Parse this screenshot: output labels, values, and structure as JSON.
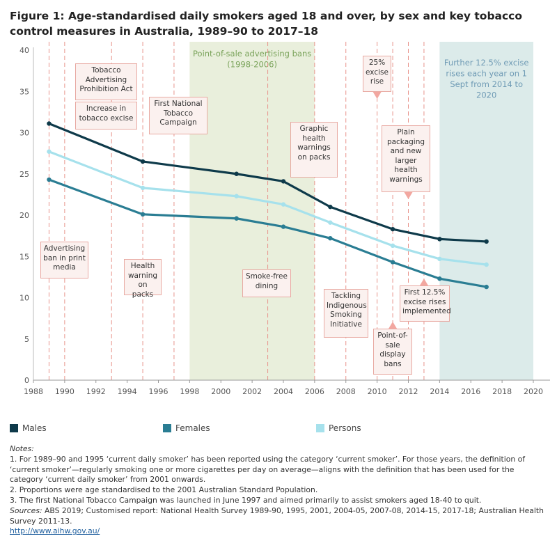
{
  "title": "Figure 1: Age-standardised daily smokers aged 18 and over, by sex and key tobacco control measures in Australia, 1989–90 to 2017–18",
  "colors": {
    "males": "#0e3a4a",
    "females": "#2a7d93",
    "persons": "#a6e1ec",
    "event_line": "#e8938b",
    "band_green": "#e9efdc",
    "band_blue": "#dcebea",
    "green_text": "#7aa35a",
    "blue_text": "#6f9bb5"
  },
  "chart_data": {
    "type": "line",
    "title": "Age-standardised daily smokers aged 18 and over, by sex and key tobacco control measures in Australia, 1989–90 to 2017–18",
    "xlabel": "",
    "ylabel": "",
    "xlim": [
      1988,
      2020
    ],
    "ylim": [
      0,
      40
    ],
    "x_ticks": [
      1988,
      1990,
      1992,
      1994,
      1996,
      1998,
      2000,
      2002,
      2004,
      2006,
      2008,
      2010,
      2012,
      2014,
      2016,
      2018,
      2020
    ],
    "y_ticks": [
      0,
      5,
      10,
      15,
      20,
      25,
      30,
      35,
      40
    ],
    "series": [
      {
        "name": "Males",
        "key": "males",
        "x": [
          1989,
          1995,
          2001,
          2004,
          2007,
          2011,
          2014,
          2017
        ],
        "values": [
          31.1,
          26.5,
          25.0,
          24.1,
          21.0,
          18.3,
          17.1,
          16.8
        ]
      },
      {
        "name": "Females",
        "key": "females",
        "x": [
          1989,
          1995,
          2001,
          2004,
          2007,
          2011,
          2014,
          2017
        ],
        "values": [
          24.3,
          20.1,
          19.6,
          18.6,
          17.2,
          14.3,
          12.3,
          11.3
        ]
      },
      {
        "name": "Persons",
        "key": "persons",
        "x": [
          1989,
          1995,
          2001,
          2004,
          2007,
          2011,
          2014,
          2017
        ],
        "values": [
          27.7,
          23.3,
          22.3,
          21.3,
          19.1,
          16.3,
          14.7,
          14.0
        ]
      }
    ],
    "event_years": [
      1989,
      1990,
      1993,
      1995,
      1997,
      2003,
      2006,
      2008,
      2010,
      2011,
      2012,
      2013
    ],
    "bands": [
      {
        "from": 1998,
        "to": 2006,
        "label_lines": [
          "Point-of-sale advertising bans",
          "(1998-2006)"
        ]
      },
      {
        "from": 2014,
        "to": 2020,
        "label_lines": [
          "Further 12.5% excise",
          "rises each year on 1",
          "Sept from 2014 to",
          "2020"
        ]
      }
    ],
    "annotations": [
      {
        "key": "print_media",
        "lines": [
          "Advertising",
          "ban in print",
          "media"
        ]
      },
      {
        "key": "tobacco_ad_act",
        "lines": [
          "Tobacco",
          "Advertising",
          "Prohibition Act"
        ]
      },
      {
        "key": "excise_increase",
        "lines": [
          "Increase in",
          "tobacco excise"
        ]
      },
      {
        "key": "health_warning",
        "lines": [
          "Health",
          "warning",
          "on packs"
        ]
      },
      {
        "key": "national_campaign",
        "lines": [
          "First National",
          "Tobacco",
          "Campaign"
        ]
      },
      {
        "key": "smoke_free",
        "lines": [
          "Smoke-free",
          "dining"
        ]
      },
      {
        "key": "graphic_warnings",
        "lines": [
          "Graphic",
          "health",
          "warnings",
          "on packs"
        ]
      },
      {
        "key": "indigenous",
        "lines": [
          "Tackling",
          "Indigenous",
          "Smoking",
          "Initiative"
        ]
      },
      {
        "key": "excise_25",
        "lines": [
          "25%",
          "excise",
          "rise"
        ]
      },
      {
        "key": "display_bans",
        "lines": [
          "Point-of-",
          "sale",
          "display",
          "bans"
        ]
      },
      {
        "key": "plain_packaging",
        "lines": [
          "Plain",
          "packaging",
          "and new",
          "larger",
          "health",
          "warnings"
        ]
      },
      {
        "key": "first_125",
        "lines": [
          "First 12.5%",
          "excise rises",
          "implemented"
        ]
      }
    ]
  },
  "legend": {
    "males": "Males",
    "females": "Females",
    "persons": "Persons"
  },
  "notes": {
    "heading": "Notes:",
    "n1": "1. For 1989–90 and 1995 ‘current daily smoker’ has been reported using the category ‘current smoker’. For those years, the definition of ‘current smoker’—regularly smoking one or more cigarettes per day on average—aligns with the definition that has been used for the category ‘current daily smoker’ from 2001 onwards.",
    "n2": "2. Proportions were age standardised to the 2001 Australian Standard Population.",
    "n3": "3. The first National Tobacco Campaign was launched in June 1997 and aimed primarily to assist smokers aged 18-40 to quit.",
    "sources_label": "Sources:",
    "sources": " ABS 2019; Customised report: National Health Survey 1989-90, 1995, 2001, 2004-05, 2007-08, 2014-15, 2017-18; Australian Health Survey 2011-13.",
    "url": "http://www.aihw.gov.au/"
  }
}
